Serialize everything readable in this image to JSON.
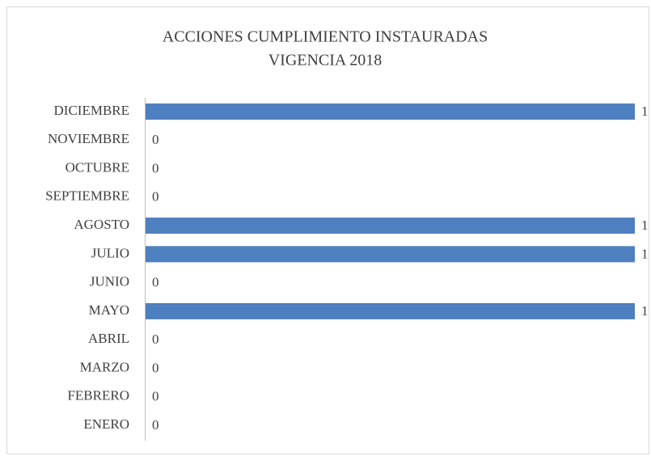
{
  "chart_data": {
    "type": "barh",
    "title": [
      "ACCIONES CUMPLIMIENTO INSTAURADAS",
      "VIGENCIA 2018"
    ],
    "categories": [
      "ENERO",
      "FEBRERO",
      "MARZO",
      "ABRIL",
      "MAYO",
      "JUNIO",
      "JULIO",
      "AGOSTO",
      "SEPTIEMBRE",
      "OCTUBRE",
      "NOVIEMBRE",
      "DICIEMBRE"
    ],
    "values": [
      0,
      0,
      0,
      0,
      1,
      0,
      1,
      1,
      0,
      0,
      0,
      1
    ],
    "color": "#4e7fbf",
    "xlim": [
      0,
      1
    ]
  }
}
